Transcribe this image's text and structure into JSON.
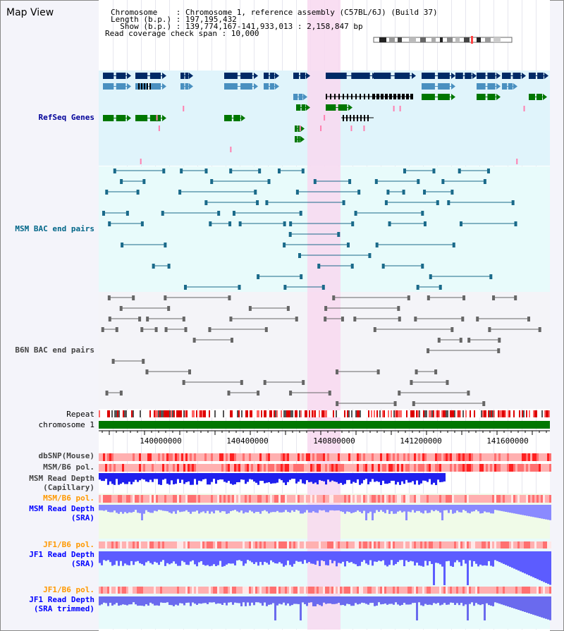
{
  "title": "Map View",
  "header": {
    "line1": "Chromosome    : Chromosome 1, reference assembly (C57BL/6J) (Build 37)",
    "line2": "Length (b.p.) : 197,195,432",
    "line3": "  Show (b.p.) : 139,774,167-141,933,013 : 2,158,847 bp",
    "line4": "Read coverage check span : 10,000"
  },
  "tracks": {
    "refseq": "RefSeq Genes",
    "msm_bac": "MSM BAC end pairs",
    "b6n_bac": "B6N BAC end pairs",
    "repeat": "Repeat",
    "chromosome": "chromosome 1",
    "dbsnp": "dbSNP(Mouse)",
    "msm_b6_pol_1": "MSM/B6 pol.",
    "msm_depth_cap_1": "MSM Read Depth",
    "msm_depth_cap_2": "(Capillary)",
    "msm_b6_pol_2": "MSM/B6 pol.",
    "msm_depth_sra_1": "MSM Read Depth",
    "msm_depth_sra_2": "(SRA)",
    "jf1_b6_pol_1": "JF1/B6 pol.",
    "jf1_depth_sra_1": "JF1 Read Depth",
    "jf1_depth_sra_2": "(SRA)",
    "jf1_b6_pol_2": "JF1/B6 pol.",
    "jf1_depth_trim_1": "JF1 Read Depth",
    "jf1_depth_trim_2": "(SRA trimmed)"
  },
  "axis": {
    "ticks": [
      "140000000",
      "140400000",
      "140800000",
      "141200000",
      "141600000"
    ]
  },
  "colors": {
    "refseq_bg": "#e0f4fb",
    "msm_bg": "#e8fbfb",
    "b6n_bg": "#f4f4f8",
    "highlight": "#f8d8f0",
    "refseq_label": "#000099",
    "msm_label": "#006688",
    "b6n_label": "#444444",
    "orange_label": "#ff9900",
    "blue_label": "#0000ff"
  }
}
